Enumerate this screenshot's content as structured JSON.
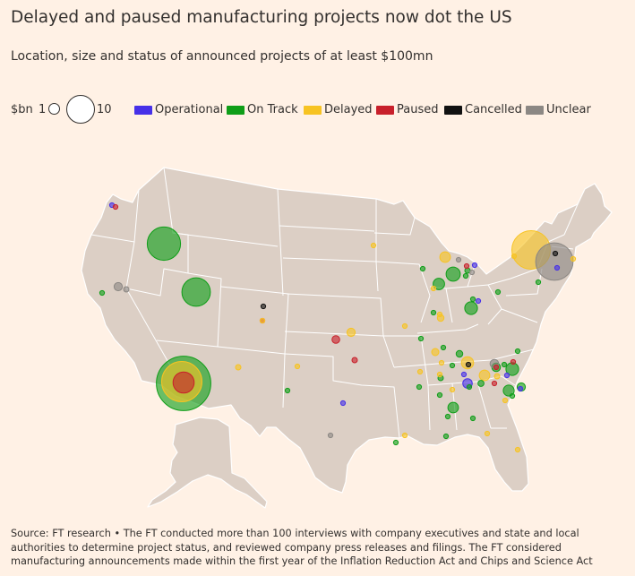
{
  "title": "Delayed and paused manufacturing projects now dot the US",
  "subtitle": "Location, size and status of announced projects of at least $100mn",
  "legend": {
    "size_label": "$bn",
    "size_min": "1",
    "size_max": "10",
    "statuses": [
      {
        "key": "operational",
        "label": "Operational",
        "color": "#4630E8"
      },
      {
        "key": "on_track",
        "label": "On Track",
        "color": "#0F9E18"
      },
      {
        "key": "delayed",
        "label": "Delayed",
        "color": "#F7C322"
      },
      {
        "key": "paused",
        "label": "Paused",
        "color": "#C8202B"
      },
      {
        "key": "cancelled",
        "label": "Cancelled",
        "color": "#111111"
      },
      {
        "key": "unclear",
        "label": "Unclear",
        "color": "#8C8884"
      }
    ]
  },
  "colors": {
    "land": "#DCCFC5",
    "border": "#FFFFFF",
    "background": "#FFF1E5",
    "text": "#33302E"
  },
  "projects": [
    {
      "region": "Portland, OR",
      "status": "operational",
      "value_bn": 0.2
    },
    {
      "region": "Portland, OR",
      "status": "paused",
      "value_bn": 0.2
    },
    {
      "region": "Idaho",
      "status": "on_track",
      "value_bn": 15
    },
    {
      "region": "Reno, NV",
      "status": "unclear",
      "value_bn": 0.9
    },
    {
      "region": "Reno, NV",
      "status": "unclear",
      "value_bn": 0.4
    },
    {
      "region": "Sacramento, CA",
      "status": "on_track",
      "value_bn": 0.3
    },
    {
      "region": "Salt Lake City, UT",
      "status": "on_track",
      "value_bn": 11
    },
    {
      "region": "Phoenix, AZ",
      "status": "on_track",
      "value_bn": 40
    },
    {
      "region": "Phoenix, AZ",
      "status": "delayed",
      "value_bn": 22
    },
    {
      "region": "Phoenix, AZ",
      "status": "paused",
      "value_bn": 6
    },
    {
      "region": "Colorado Springs, CO",
      "status": "cancelled",
      "value_bn": 0.1
    },
    {
      "region": "Pueblo, CO",
      "status": "paused",
      "value_bn": 0.2
    },
    {
      "region": "Pueblo, CO",
      "status": "delayed",
      "value_bn": 0.1
    },
    {
      "region": "Albuquerque, NM",
      "status": "delayed",
      "value_bn": 0.4
    },
    {
      "region": "El Paso, TX",
      "status": "on_track",
      "value_bn": 0.1
    },
    {
      "region": "Lubbock, TX",
      "status": "delayed",
      "value_bn": 0.1
    },
    {
      "region": "Minnesota",
      "status": "delayed",
      "value_bn": 0.1
    },
    {
      "region": "Wichita, KS",
      "status": "paused",
      "value_bn": 0.8
    },
    {
      "region": "Kansas City, MO",
      "status": "delayed",
      "value_bn": 0.9
    },
    {
      "region": "Oklahoma",
      "status": "paused",
      "value_bn": 0.4
    },
    {
      "region": "Texas",
      "status": "operational",
      "value_bn": 0.1
    },
    {
      "region": "San Antonio, TX",
      "status": "unclear",
      "value_bn": 0.3
    },
    {
      "region": "Syracuse, NY",
      "status": "delayed",
      "value_bn": 20
    },
    {
      "region": "Scranton, PA",
      "status": "unclear",
      "value_bn": 19
    },
    {
      "region": "Scranton, PA",
      "status": "cancelled",
      "value_bn": 0.2
    },
    {
      "region": "Scranton, PA",
      "status": "operational",
      "value_bn": 0.2
    },
    {
      "region": "Boston, MA",
      "status": "delayed",
      "value_bn": 0.1
    },
    {
      "region": "Albany, NY",
      "status": "delayed",
      "value_bn": 0.1
    },
    {
      "region": "Virginia",
      "status": "on_track",
      "value_bn": 0.1
    },
    {
      "region": "Pittsburgh, PA",
      "status": "on_track",
      "value_bn": 0.2
    },
    {
      "region": "Michigan",
      "status": "delayed",
      "value_bn": 1.5
    },
    {
      "region": "Michigan",
      "status": "unclear",
      "value_bn": 0.1
    },
    {
      "region": "Michigan",
      "status": "operational",
      "value_bn": 0.2
    },
    {
      "region": "Lansing, MI",
      "status": "paused",
      "value_bn": 0.2
    },
    {
      "region": "Lansing, MI",
      "status": "on_track",
      "value_bn": 0.4
    },
    {
      "region": "Lansing, MI",
      "status": "unclear",
      "value_bn": 0.1
    },
    {
      "region": "Lansing, MI",
      "status": "on_track",
      "value_bn": 0.2
    },
    {
      "region": "Toledo, OH",
      "status": "on_track",
      "value_bn": 2.7
    },
    {
      "region": "Chicago, IL",
      "status": "on_track",
      "value_bn": 1.8
    },
    {
      "region": "Chicago, IL",
      "status": "on_track",
      "value_bn": 0.1
    },
    {
      "region": "Chicago, IL",
      "status": "delayed",
      "value_bn": 0.3
    },
    {
      "region": "Ohio",
      "status": "on_track",
      "value_bn": 2.2
    },
    {
      "region": "Ohio",
      "status": "on_track",
      "value_bn": 0.1
    },
    {
      "region": "Ohio",
      "status": "operational",
      "value_bn": 0.1
    },
    {
      "region": "Ohio",
      "status": "delayed",
      "value_bn": 0.2
    },
    {
      "region": "Indiana",
      "status": "on_track",
      "value_bn": 0.1
    },
    {
      "region": "Indiana",
      "status": "delayed",
      "value_bn": 0.6
    },
    {
      "region": "Indiana",
      "status": "delayed",
      "value_bn": 0.3
    },
    {
      "region": "Indiana",
      "status": "on_track",
      "value_bn": 0.1
    },
    {
      "region": "Missouri",
      "status": "on_track",
      "value_bn": 0.1
    },
    {
      "region": "Kentucky",
      "status": "delayed",
      "value_bn": 0.7
    },
    {
      "region": "Kentucky",
      "status": "on_track",
      "value_bn": 0.6
    },
    {
      "region": "Kentucky",
      "status": "on_track",
      "value_bn": 0.1
    },
    {
      "region": "Kentucky",
      "status": "delayed",
      "value_bn": 0.2
    },
    {
      "region": "Tennessee",
      "status": "on_track",
      "value_bn": 0.4
    },
    {
      "region": "Tennessee",
      "status": "on_track",
      "value_bn": 0.1
    },
    {
      "region": "Tennessee",
      "status": "delayed",
      "value_bn": 0.1
    },
    {
      "region": "Tennessee",
      "status": "operational",
      "value_bn": 0.1
    },
    {
      "region": "Chattanooga, TN",
      "status": "operational",
      "value_bn": 1.2
    },
    {
      "region": "Chattanooga, TN",
      "status": "delayed",
      "value_bn": 2.0
    },
    {
      "region": "Chattanooga, TN",
      "status": "cancelled",
      "value_bn": 0.1
    },
    {
      "region": "Chattanooga, TN",
      "status": "on_track",
      "value_bn": 0.3
    },
    {
      "region": "Georgia",
      "status": "delayed",
      "value_bn": 1.5
    },
    {
      "region": "Georgia",
      "status": "on_track",
      "value_bn": 0.5
    },
    {
      "region": "Georgia",
      "status": "delayed",
      "value_bn": 0.4
    },
    {
      "region": "Georgia",
      "status": "delayed",
      "value_bn": 0.2
    },
    {
      "region": "Georgia",
      "status": "on_track",
      "value_bn": 0.1
    },
    {
      "region": "North Carolina",
      "status": "on_track",
      "value_bn": 2.2
    },
    {
      "region": "North Carolina",
      "status": "on_track",
      "value_bn": 0.2
    },
    {
      "region": "North Carolina",
      "status": "paused",
      "value_bn": 0.2
    },
    {
      "region": "North Carolina",
      "status": "paused",
      "value_bn": 0.1
    },
    {
      "region": "North Carolina",
      "status": "operational",
      "value_bn": 0.1
    },
    {
      "region": "Charlotte, NC",
      "status": "on_track",
      "value_bn": 1.0
    },
    {
      "region": "South Carolina",
      "status": "on_track",
      "value_bn": 0.9
    },
    {
      "region": "South Carolina",
      "status": "operational",
      "value_bn": 0.2
    },
    {
      "region": "South Carolina",
      "status": "unclear",
      "value_bn": 1.0
    },
    {
      "region": "South Carolina",
      "status": "paused",
      "value_bn": 0.1
    },
    {
      "region": "South Carolina",
      "status": "on_track",
      "value_bn": 1.6
    },
    {
      "region": "South Carolina",
      "status": "delayed",
      "value_bn": 0.1
    },
    {
      "region": "South Carolina",
      "status": "on_track",
      "value_bn": 0.2
    },
    {
      "region": "Savannah, GA",
      "status": "on_track",
      "value_bn": 1.5
    },
    {
      "region": "Savannah, GA",
      "status": "on_track",
      "value_bn": 0.2
    },
    {
      "region": "Alabama",
      "status": "on_track",
      "value_bn": 0.3
    },
    {
      "region": "Alabama",
      "status": "delayed",
      "value_bn": 0.3
    },
    {
      "region": "Alabama",
      "status": "on_track",
      "value_bn": 0.1
    },
    {
      "region": "Mississippi",
      "status": "on_track",
      "value_bn": 0.1
    },
    {
      "region": "Mississippi",
      "status": "delayed",
      "value_bn": 0.1
    },
    {
      "region": "Louisiana",
      "status": "on_track",
      "value_bn": 0.3
    },
    {
      "region": "Louisiana",
      "status": "delayed",
      "value_bn": 0.1
    },
    {
      "region": "Georgia south",
      "status": "delayed",
      "value_bn": 0.3
    },
    {
      "region": "Florida",
      "status": "delayed",
      "value_bn": 0.1
    },
    {
      "region": "Florida panhandle",
      "status": "delayed",
      "value_bn": 0.1
    }
  ],
  "source": "Source: FT research • The FT conducted more than 100 interviews with company executives and state and local authorities to determine project status, and reviewed company press releases and filings. The FT considered manufacturing announcements made within the first year of the Inflation Reduction Act and Chips and Science Act"
}
